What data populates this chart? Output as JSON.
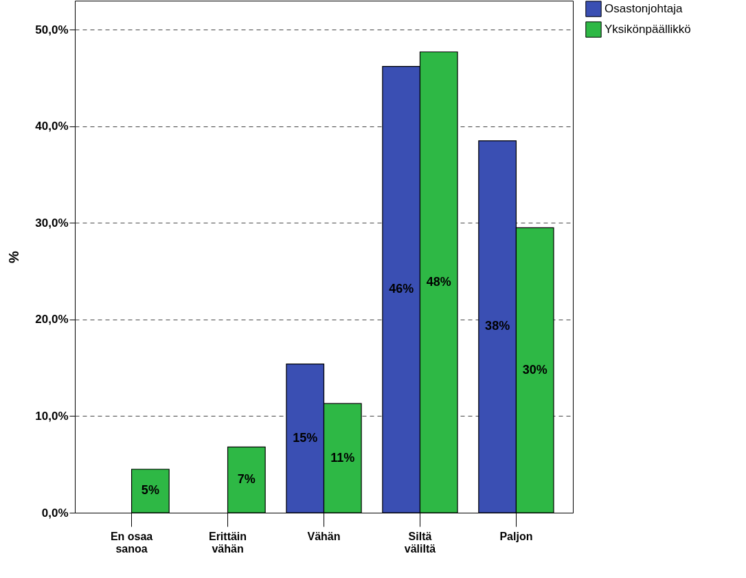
{
  "chart_data": {
    "type": "bar",
    "ylabel": "%",
    "categories": [
      "En osaa sanoa",
      "Erittäin vähän",
      "Vähän",
      "Siltä väliltä",
      "Paljon"
    ],
    "series": [
      {
        "name": "Osastonjohtaja",
        "color": "#3a4fb3",
        "values": [
          null,
          null,
          15.4,
          46.2,
          38.5
        ],
        "value_labels": [
          null,
          null,
          "15%",
          "46%",
          "38%"
        ]
      },
      {
        "name": "Yksikönpäällikkö",
        "color": "#2eb845",
        "values": [
          4.5,
          6.8,
          11.3,
          47.7,
          29.5
        ],
        "value_labels": [
          "5%",
          "7%",
          "11%",
          "48%",
          "30%"
        ]
      }
    ],
    "ylim": [
      0,
      53
    ],
    "yticks": [
      {
        "value": 0,
        "label": "0,0%"
      },
      {
        "value": 10,
        "label": "10,0%"
      },
      {
        "value": 20,
        "label": "20,0%"
      },
      {
        "value": 30,
        "label": "30,0%"
      },
      {
        "value": 40,
        "label": "40,0%"
      },
      {
        "value": 50,
        "label": "50,0%"
      }
    ],
    "grid": "y",
    "legend": "top right"
  }
}
